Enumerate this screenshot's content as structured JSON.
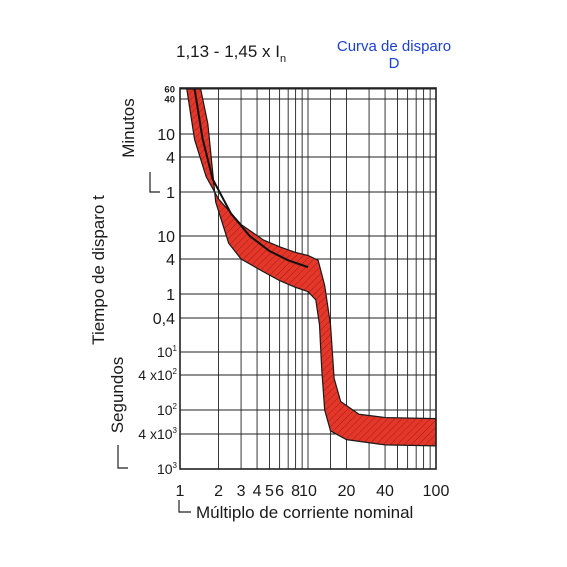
{
  "header": {
    "formula": "1,13 - 1,45 x I",
    "formula_sub": "n",
    "curve_title_line1": "Curva de disparo",
    "curve_title_line2": "D"
  },
  "chart_data": {
    "type": "area",
    "title": "Curva de disparo D",
    "xlabel": "Múltiplo de corriente nominal",
    "ylabel": "Tiempo de disparo t",
    "y_unit_labels": [
      "Minutos",
      "Segundos"
    ],
    "x_scale": "log",
    "xlim": [
      1,
      100
    ],
    "x_gridlines": [
      1,
      2,
      3,
      4,
      5,
      6,
      7,
      8,
      9,
      10,
      15,
      20,
      30,
      40,
      50,
      60,
      70,
      80,
      90,
      100
    ],
    "x_tick_labels": [
      {
        "value": 1,
        "label": "1"
      },
      {
        "value": 2,
        "label": "2"
      },
      {
        "value": 3,
        "label": "3"
      },
      {
        "value": 4,
        "label": "4"
      },
      {
        "value": 5,
        "label": "5"
      },
      {
        "value": 6,
        "label": "6"
      },
      {
        "value": 8,
        "label": "8"
      },
      {
        "value": 10,
        "label": "10"
      },
      {
        "value": 20,
        "label": "20"
      },
      {
        "value": 40,
        "label": "40"
      },
      {
        "value": 100,
        "label": "100"
      }
    ],
    "y_scale": "log",
    "y_unit": "s",
    "ylim": [
      0.001,
      3600
    ],
    "y_gridlines": [
      3600,
      2400,
      600,
      240,
      60,
      10,
      4,
      1,
      0.4,
      0.1,
      0.04,
      0.01,
      0.004,
      0.001
    ],
    "y_tick_labels": [
      {
        "value": 3600,
        "label": "60",
        "size": "small"
      },
      {
        "value": 2400,
        "label": "40",
        "size": "small"
      },
      {
        "value": 600,
        "label": "10",
        "size": "normal"
      },
      {
        "value": 240,
        "label": "4",
        "size": "normal"
      },
      {
        "value": 60,
        "label": "1",
        "size": "normal"
      },
      {
        "value": 10,
        "label": "10",
        "size": "normal"
      },
      {
        "value": 4,
        "label": "4",
        "size": "normal"
      },
      {
        "value": 1,
        "label": "1",
        "size": "normal"
      },
      {
        "value": 0.4,
        "label": "0,4",
        "size": "normal"
      },
      {
        "value": 0.1,
        "label": "10",
        "sup": "1",
        "size": "exp"
      },
      {
        "value": 0.04,
        "label": "4 x10",
        "sup": "2",
        "size": "exp"
      },
      {
        "value": 0.01,
        "label": "10",
        "sup": "2",
        "size": "exp"
      },
      {
        "value": 0.004,
        "label": "4 x10",
        "sup": "3",
        "size": "exp"
      },
      {
        "value": 0.001,
        "label": "10",
        "sup": "3",
        "size": "exp"
      }
    ],
    "band_upper": [
      {
        "x": 1.13,
        "y": 3600
      },
      {
        "x": 1.3,
        "y": 480
      },
      {
        "x": 1.6,
        "y": 110
      },
      {
        "x": 2.0,
        "y": 45
      },
      {
        "x": 3.0,
        "y": 16
      },
      {
        "x": 4.5,
        "y": 8.5
      },
      {
        "x": 6.0,
        "y": 6.5
      },
      {
        "x": 8.0,
        "y": 5.2
      },
      {
        "x": 10.0,
        "y": 4.6
      },
      {
        "x": 12.0,
        "y": 3.8
      },
      {
        "x": 13.5,
        "y": 1.4
      },
      {
        "x": 15.0,
        "y": 0.3
      },
      {
        "x": 16.0,
        "y": 0.035
      },
      {
        "x": 18.0,
        "y": 0.014
      },
      {
        "x": 25.0,
        "y": 0.0085
      },
      {
        "x": 40.0,
        "y": 0.0075
      },
      {
        "x": 100.0,
        "y": 0.0072
      }
    ],
    "band_lower": [
      {
        "x": 100.0,
        "y": 0.0025
      },
      {
        "x": 40.0,
        "y": 0.0026
      },
      {
        "x": 20.0,
        "y": 0.0032
      },
      {
        "x": 15.0,
        "y": 0.0045
      },
      {
        "x": 13.5,
        "y": 0.01
      },
      {
        "x": 12.8,
        "y": 0.05
      },
      {
        "x": 12.3,
        "y": 0.3
      },
      {
        "x": 11.5,
        "y": 0.8
      },
      {
        "x": 10.0,
        "y": 1.1
      },
      {
        "x": 8.0,
        "y": 1.3
      },
      {
        "x": 6.0,
        "y": 1.7
      },
      {
        "x": 4.5,
        "y": 2.4
      },
      {
        "x": 3.0,
        "y": 4.0
      },
      {
        "x": 2.4,
        "y": 7.5
      },
      {
        "x": 1.9,
        "y": 40
      },
      {
        "x": 1.65,
        "y": 900
      },
      {
        "x": 1.45,
        "y": 3600
      }
    ],
    "center_line": [
      {
        "x": 1.3,
        "y": 3600
      },
      {
        "x": 1.5,
        "y": 500
      },
      {
        "x": 1.8,
        "y": 100
      },
      {
        "x": 2.5,
        "y": 25
      },
      {
        "x": 3.5,
        "y": 10
      },
      {
        "x": 5.0,
        "y": 5.5
      },
      {
        "x": 7.0,
        "y": 3.8
      },
      {
        "x": 10.0,
        "y": 2.9
      }
    ],
    "colors": {
      "band_fill": "#e4372a",
      "band_outline": "#1a1a1a",
      "center_line": "#111111",
      "grid": "#222222",
      "accent_text": "#1a3fd6"
    },
    "grid": true,
    "legend": "none"
  }
}
